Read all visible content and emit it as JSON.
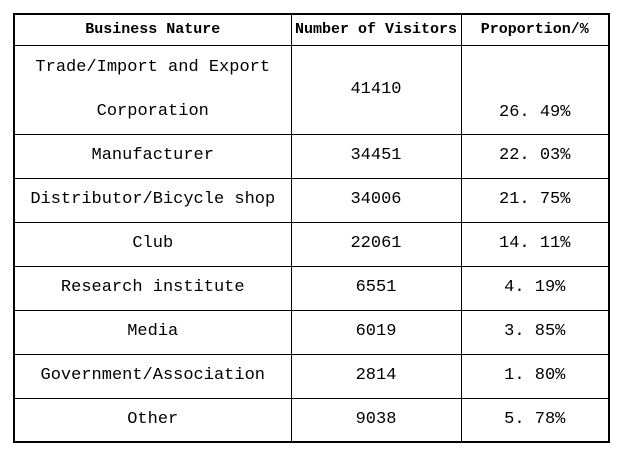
{
  "table": {
    "headers": [
      "Business Nature",
      "Number of Visitors",
      "Proportion/%"
    ],
    "rows": [
      {
        "nature_lines": [
          "Trade/Import and Export",
          "Corporation"
        ],
        "visitors": "41410",
        "proportion": "26. 49%",
        "tall": true
      },
      {
        "nature_lines": [
          "Manufacturer"
        ],
        "visitors": "34451",
        "proportion": "22. 03%",
        "tall": false
      },
      {
        "nature_lines": [
          "Distributor/Bicycle shop"
        ],
        "visitors": "34006",
        "proportion": "21. 75%",
        "tall": false
      },
      {
        "nature_lines": [
          "Club"
        ],
        "visitors": "22061",
        "proportion": "14. 11%",
        "tall": false
      },
      {
        "nature_lines": [
          "Research institute"
        ],
        "visitors": "6551",
        "proportion": "4. 19%",
        "tall": false
      },
      {
        "nature_lines": [
          "Media"
        ],
        "visitors": "6019",
        "proportion": "3. 85%",
        "tall": false
      },
      {
        "nature_lines": [
          "Government/Association"
        ],
        "visitors": "2814",
        "proportion": "1. 80%",
        "tall": false
      },
      {
        "nature_lines": [
          "Other"
        ],
        "visitors": "9038",
        "proportion": "5. 78%",
        "tall": false
      }
    ],
    "colors": {
      "border": "#000000",
      "text": "#000000",
      "background": "#ffffff"
    }
  },
  "chart_data": {
    "type": "table",
    "title": "",
    "columns": [
      "Business Nature",
      "Number of Visitors",
      "Proportion/%"
    ],
    "rows": [
      [
        "Trade/Import and Export Corporation",
        41410,
        "26.49%"
      ],
      [
        "Manufacturer",
        34451,
        "22.03%"
      ],
      [
        "Distributor/Bicycle shop",
        34006,
        "21.75%"
      ],
      [
        "Club",
        22061,
        "14.11%"
      ],
      [
        "Research institute",
        6551,
        "4.19%"
      ],
      [
        "Media",
        6019,
        "3.85%"
      ],
      [
        "Government/Association",
        2814,
        "1.80%"
      ],
      [
        "Other",
        9038,
        "5.78%"
      ]
    ]
  }
}
